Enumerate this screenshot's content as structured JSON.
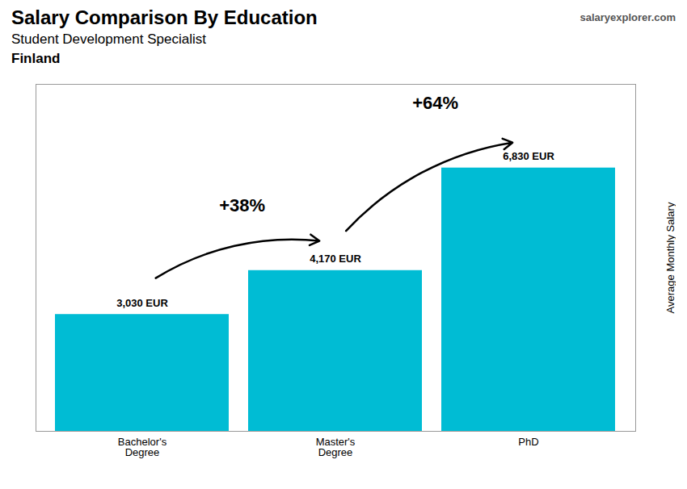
{
  "chart_data": {
    "type": "bar",
    "title": "Salary Comparison By Education",
    "subtitle": "Student Development Specialist",
    "country": "Finland",
    "source": "salaryexplorer.com",
    "ylabel": "Average Monthly Salary",
    "categories": [
      "Bachelor's\nDegree",
      "Master's\nDegree",
      "PhD"
    ],
    "values": [
      3030,
      4170,
      6830
    ],
    "value_labels": [
      "3,030 EUR",
      "4,170 EUR",
      "6,830 EUR"
    ],
    "annotations": [
      "+38%",
      "+64%"
    ],
    "color": "#00bcd4",
    "ylim": [
      0,
      9000
    ],
    "yticks": [],
    "data_labels": true,
    "tick_labels": "x",
    "grid": false
  }
}
